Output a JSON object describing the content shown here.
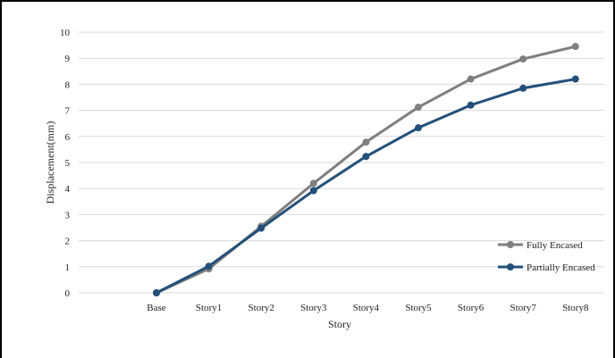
{
  "chart_data": {
    "type": "line",
    "title": "",
    "xlabel": "Story",
    "ylabel": "Displacement(mm)",
    "ylim": [
      0,
      10
    ],
    "yticks": [
      "0",
      "1",
      "2",
      "3",
      "4",
      "5",
      "6",
      "7",
      "8",
      "9",
      "10"
    ],
    "grid": "horizontal",
    "legend_position": "right",
    "categories": [
      "Base",
      "Story1",
      "Story2",
      "Story3",
      "Story4",
      "Story5",
      "Story6",
      "Story7",
      "Story8"
    ],
    "series": [
      {
        "name": "Fully Encased",
        "color": "#7f7f7f",
        "values": [
          0,
          0.92,
          2.55,
          4.2,
          5.78,
          7.12,
          8.2,
          8.97,
          9.45
        ]
      },
      {
        "name": "Partially Encased",
        "color": "#22507a",
        "values": [
          0,
          1.02,
          2.48,
          3.92,
          5.23,
          6.33,
          7.2,
          7.85,
          8.2
        ]
      }
    ]
  }
}
